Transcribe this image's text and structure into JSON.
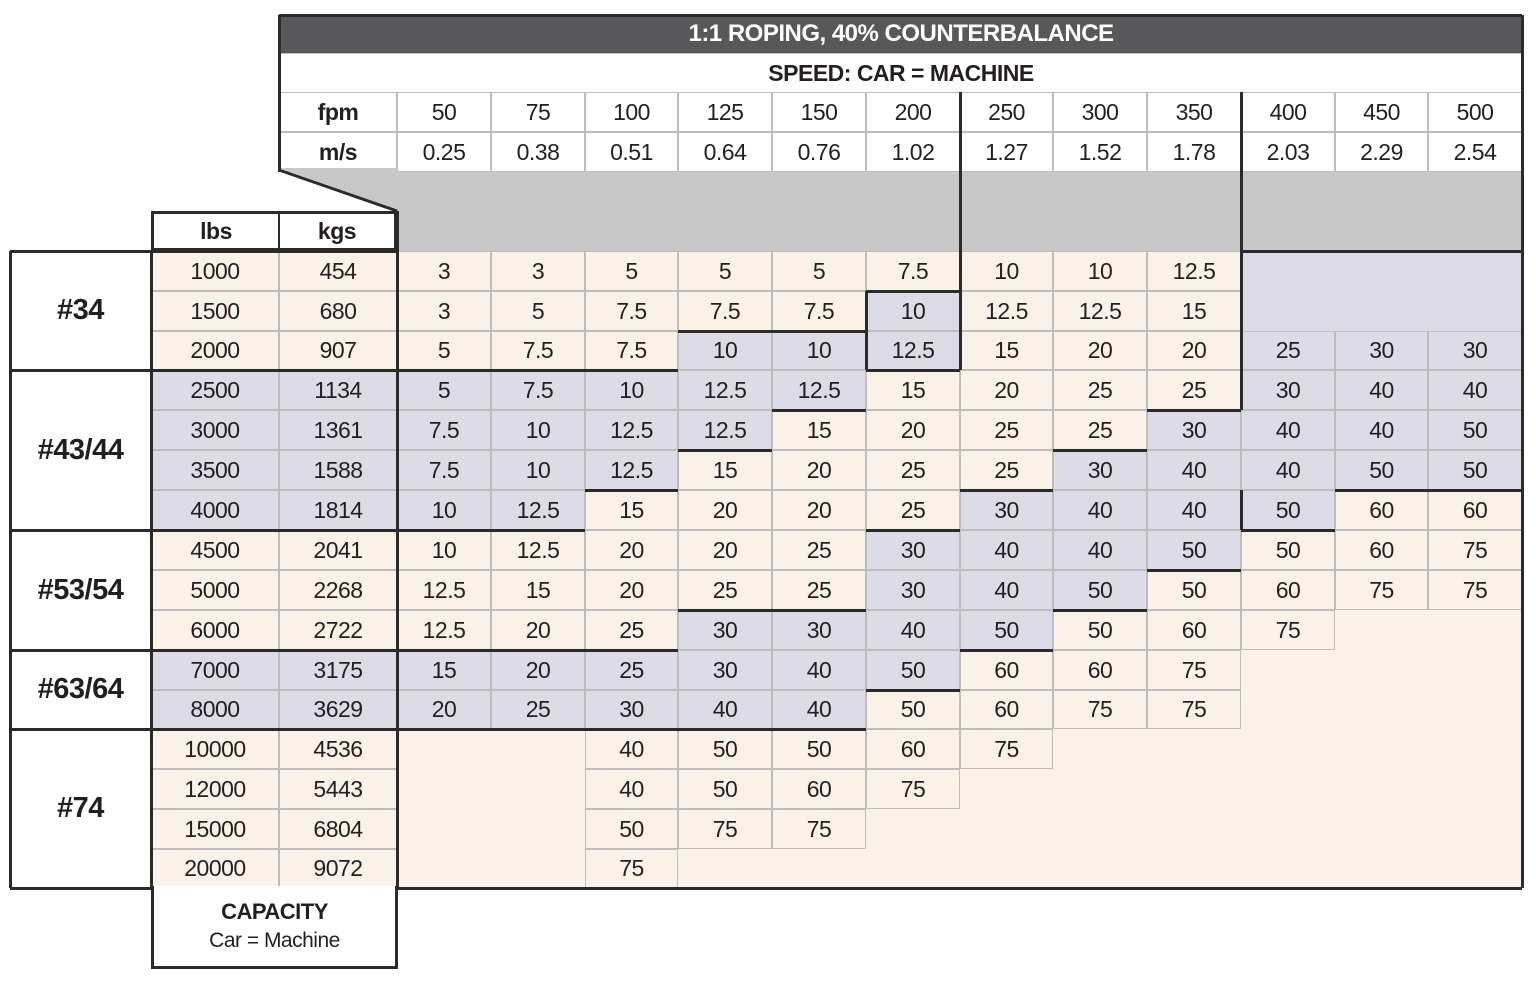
{
  "header": {
    "title": "1:1 ROPING, 40% COUNTERBALANCE",
    "subtitle": "SPEED: CAR = MACHINE",
    "fpm_label": "fpm",
    "ms_label": "m/s",
    "lbs_label": "lbs",
    "kgs_label": "kgs"
  },
  "footer": {
    "capacity_label": "CAPACITY",
    "capacity_sub": "Car = Machine"
  },
  "colors": {
    "title_bg": "#58585a",
    "cream": "#faf1e8",
    "lavender": "#dcdbe6",
    "gray_band": "#c8c8c9",
    "border_dark": "#2b2b2b",
    "grid_line": "#bdbdbd"
  },
  "speeds_fpm": [
    "50",
    "75",
    "100",
    "125",
    "150",
    "200",
    "250",
    "300",
    "350",
    "400",
    "450",
    "500"
  ],
  "speeds_ms": [
    "0.25",
    "0.38",
    "0.51",
    "0.64",
    "0.76",
    "1.02",
    "1.27",
    "1.52",
    "1.78",
    "2.03",
    "2.29",
    "2.54"
  ],
  "groups": [
    {
      "label": "#34",
      "rows": [
        0,
        2
      ]
    },
    {
      "label": "#43/44",
      "rows": [
        3,
        6
      ]
    },
    {
      "label": "#53/54",
      "rows": [
        7,
        9
      ]
    },
    {
      "label": "#63/64",
      "rows": [
        10,
        11
      ]
    },
    {
      "label": "#74",
      "rows": [
        12,
        15
      ]
    }
  ],
  "rows": [
    {
      "lbs": "1000",
      "kgs": "454",
      "bg": "c",
      "values": [
        "3",
        "3",
        "5",
        "5",
        "5",
        "7.5",
        "10",
        "10",
        "12.5",
        "",
        "",
        ""
      ],
      "colors": [
        "c",
        "c",
        "c",
        "c",
        "c",
        "c",
        "c",
        "c",
        "c",
        "l",
        "l",
        "l"
      ]
    },
    {
      "lbs": "1500",
      "kgs": "680",
      "bg": "c",
      "values": [
        "3",
        "5",
        "7.5",
        "7.5",
        "7.5",
        "10",
        "12.5",
        "12.5",
        "15",
        "",
        "",
        ""
      ],
      "colors": [
        "c",
        "c",
        "c",
        "c",
        "c",
        "l",
        "c",
        "c",
        "c",
        "l",
        "l",
        "l"
      ]
    },
    {
      "lbs": "2000",
      "kgs": "907",
      "bg": "c",
      "values": [
        "5",
        "7.5",
        "7.5",
        "10",
        "10",
        "12.5",
        "15",
        "20",
        "20",
        "25",
        "30",
        "30"
      ],
      "colors": [
        "c",
        "c",
        "c",
        "l",
        "l",
        "l",
        "c",
        "c",
        "c",
        "l",
        "l",
        "l"
      ]
    },
    {
      "lbs": "2500",
      "kgs": "1134",
      "bg": "l",
      "values": [
        "5",
        "7.5",
        "10",
        "12.5",
        "12.5",
        "15",
        "20",
        "25",
        "25",
        "30",
        "40",
        "40"
      ],
      "colors": [
        "l",
        "l",
        "l",
        "l",
        "l",
        "c",
        "c",
        "c",
        "c",
        "l",
        "l",
        "l"
      ]
    },
    {
      "lbs": "3000",
      "kgs": "1361",
      "bg": "l",
      "values": [
        "7.5",
        "10",
        "12.5",
        "12.5",
        "15",
        "20",
        "25",
        "25",
        "30",
        "40",
        "40",
        "50"
      ],
      "colors": [
        "l",
        "l",
        "l",
        "l",
        "c",
        "c",
        "c",
        "c",
        "l",
        "l",
        "l",
        "l"
      ]
    },
    {
      "lbs": "3500",
      "kgs": "1588",
      "bg": "l",
      "values": [
        "7.5",
        "10",
        "12.5",
        "15",
        "20",
        "25",
        "25",
        "30",
        "40",
        "40",
        "50",
        "50"
      ],
      "colors": [
        "l",
        "l",
        "l",
        "c",
        "c",
        "c",
        "c",
        "l",
        "l",
        "l",
        "l",
        "l"
      ]
    },
    {
      "lbs": "4000",
      "kgs": "1814",
      "bg": "l",
      "values": [
        "10",
        "12.5",
        "15",
        "20",
        "20",
        "25",
        "30",
        "40",
        "40",
        "50",
        "60",
        "60"
      ],
      "colors": [
        "l",
        "l",
        "c",
        "c",
        "c",
        "c",
        "l",
        "l",
        "l",
        "l",
        "c",
        "c"
      ]
    },
    {
      "lbs": "4500",
      "kgs": "2041",
      "bg": "c",
      "values": [
        "10",
        "12.5",
        "20",
        "20",
        "25",
        "30",
        "40",
        "40",
        "50",
        "50",
        "60",
        "75"
      ],
      "colors": [
        "c",
        "c",
        "c",
        "c",
        "c",
        "l",
        "l",
        "l",
        "l",
        "c",
        "c",
        "c"
      ]
    },
    {
      "lbs": "5000",
      "kgs": "2268",
      "bg": "c",
      "values": [
        "12.5",
        "15",
        "20",
        "25",
        "25",
        "30",
        "40",
        "50",
        "50",
        "60",
        "75",
        "75"
      ],
      "colors": [
        "c",
        "c",
        "c",
        "c",
        "c",
        "l",
        "l",
        "l",
        "c",
        "c",
        "c",
        "c"
      ]
    },
    {
      "lbs": "6000",
      "kgs": "2722",
      "bg": "c",
      "values": [
        "12.5",
        "20",
        "25",
        "30",
        "30",
        "40",
        "50",
        "50",
        "60",
        "75",
        "",
        ""
      ],
      "colors": [
        "c",
        "c",
        "c",
        "l",
        "l",
        "l",
        "l",
        "c",
        "c",
        "c",
        "c",
        "c"
      ]
    },
    {
      "lbs": "7000",
      "kgs": "3175",
      "bg": "l",
      "values": [
        "15",
        "20",
        "25",
        "30",
        "40",
        "50",
        "60",
        "60",
        "75",
        "",
        "",
        ""
      ],
      "colors": [
        "l",
        "l",
        "l",
        "l",
        "l",
        "l",
        "c",
        "c",
        "c",
        "c",
        "c",
        "c"
      ]
    },
    {
      "lbs": "8000",
      "kgs": "3629",
      "bg": "l",
      "values": [
        "20",
        "25",
        "30",
        "40",
        "40",
        "50",
        "60",
        "75",
        "75",
        "",
        "",
        ""
      ],
      "colors": [
        "l",
        "l",
        "l",
        "l",
        "l",
        "c",
        "c",
        "c",
        "c",
        "c",
        "c",
        "c"
      ]
    },
    {
      "lbs": "10000",
      "kgs": "4536",
      "bg": "c",
      "values": [
        "",
        "",
        "40",
        "50",
        "50",
        "60",
        "75",
        "",
        "",
        "",
        "",
        ""
      ],
      "colors": [
        "c",
        "c",
        "c",
        "c",
        "c",
        "c",
        "c",
        "c",
        "c",
        "c",
        "c",
        "c"
      ]
    },
    {
      "lbs": "12000",
      "kgs": "5443",
      "bg": "c",
      "values": [
        "",
        "",
        "40",
        "50",
        "60",
        "75",
        "",
        "",
        "",
        "",
        "",
        ""
      ],
      "colors": [
        "c",
        "c",
        "c",
        "c",
        "c",
        "c",
        "c",
        "c",
        "c",
        "c",
        "c",
        "c"
      ]
    },
    {
      "lbs": "15000",
      "kgs": "6804",
      "bg": "c",
      "values": [
        "",
        "",
        "50",
        "75",
        "75",
        "",
        "",
        "",
        "",
        "",
        "",
        ""
      ],
      "colors": [
        "c",
        "c",
        "c",
        "c",
        "c",
        "c",
        "c",
        "c",
        "c",
        "c",
        "c",
        "c"
      ]
    },
    {
      "lbs": "20000",
      "kgs": "9072",
      "bg": "c",
      "values": [
        "",
        "",
        "75",
        "",
        "",
        "",
        "",
        "",
        "",
        "",
        "",
        ""
      ],
      "colors": [
        "c",
        "c",
        "c",
        "c",
        "c",
        "c",
        "c",
        "c",
        "c",
        "c",
        "c",
        "c"
      ]
    }
  ],
  "chart_data": {
    "type": "table",
    "title": "1:1 ROPING, 40% COUNTERBALANCE",
    "subtitle": "SPEED: CAR = MACHINE",
    "column_header_fpm": [
      "50",
      "75",
      "100",
      "125",
      "150",
      "200",
      "250",
      "300",
      "350",
      "400",
      "450",
      "500"
    ],
    "column_header_ms": [
      "0.25",
      "0.38",
      "0.51",
      "0.64",
      "0.76",
      "1.02",
      "1.27",
      "1.52",
      "1.78",
      "2.03",
      "2.29",
      "2.54"
    ],
    "row_header": "CAPACITY Car = Machine (lbs / kgs)",
    "machine_groups": {
      "#34": [
        "1000",
        "1500",
        "2000"
      ],
      "#43/44": [
        "2500",
        "3000",
        "3500",
        "4000"
      ],
      "#53/54": [
        "4500",
        "5000",
        "6000"
      ],
      "#63/64": [
        "7000",
        "8000"
      ],
      "#74": [
        "10000",
        "12000",
        "15000",
        "20000"
      ]
    },
    "capacity_lbs": [
      "1000",
      "1500",
      "2000",
      "2500",
      "3000",
      "3500",
      "4000",
      "4500",
      "5000",
      "6000",
      "7000",
      "8000",
      "10000",
      "12000",
      "15000",
      "20000"
    ],
    "capacity_kgs": [
      "454",
      "680",
      "907",
      "1134",
      "1361",
      "1588",
      "1814",
      "2041",
      "2268",
      "2722",
      "3175",
      "3629",
      "4536",
      "5443",
      "6804",
      "9072"
    ],
    "values": [
      [
        "3",
        "3",
        "5",
        "5",
        "5",
        "7.5",
        "10",
        "10",
        "12.5",
        "",
        "",
        ""
      ],
      [
        "3",
        "5",
        "7.5",
        "7.5",
        "7.5",
        "10",
        "12.5",
        "12.5",
        "15",
        "",
        "",
        ""
      ],
      [
        "5",
        "7.5",
        "7.5",
        "10",
        "10",
        "12.5",
        "15",
        "20",
        "20",
        "25",
        "30",
        "30"
      ],
      [
        "5",
        "7.5",
        "10",
        "12.5",
        "12.5",
        "15",
        "20",
        "25",
        "25",
        "30",
        "40",
        "40"
      ],
      [
        "7.5",
        "10",
        "12.5",
        "12.5",
        "15",
        "20",
        "25",
        "25",
        "30",
        "40",
        "40",
        "50"
      ],
      [
        "7.5",
        "10",
        "12.5",
        "15",
        "20",
        "25",
        "25",
        "30",
        "40",
        "40",
        "50",
        "50"
      ],
      [
        "10",
        "12.5",
        "15",
        "20",
        "20",
        "25",
        "30",
        "40",
        "40",
        "50",
        "60",
        "60"
      ],
      [
        "10",
        "12.5",
        "20",
        "20",
        "25",
        "30",
        "40",
        "40",
        "50",
        "50",
        "60",
        "75"
      ],
      [
        "12.5",
        "15",
        "20",
        "25",
        "25",
        "30",
        "40",
        "50",
        "50",
        "60",
        "75",
        "75"
      ],
      [
        "12.5",
        "20",
        "25",
        "30",
        "30",
        "40",
        "50",
        "50",
        "60",
        "75",
        "",
        ""
      ],
      [
        "15",
        "20",
        "25",
        "30",
        "40",
        "50",
        "60",
        "60",
        "75",
        "",
        "",
        ""
      ],
      [
        "20",
        "25",
        "30",
        "40",
        "40",
        "50",
        "60",
        "75",
        "75",
        "",
        "",
        ""
      ],
      [
        "",
        "",
        "40",
        "50",
        "50",
        "60",
        "75",
        "",
        "",
        "",
        "",
        ""
      ],
      [
        "",
        "",
        "40",
        "50",
        "60",
        "75",
        "",
        "",
        "",
        "",
        "",
        ""
      ],
      [
        "",
        "",
        "50",
        "75",
        "75",
        "",
        "",
        "",
        "",
        "",
        "",
        ""
      ],
      [
        "",
        "",
        "75",
        "",
        "",
        "",
        "",
        "",
        "",
        "",
        "",
        ""
      ]
    ]
  }
}
